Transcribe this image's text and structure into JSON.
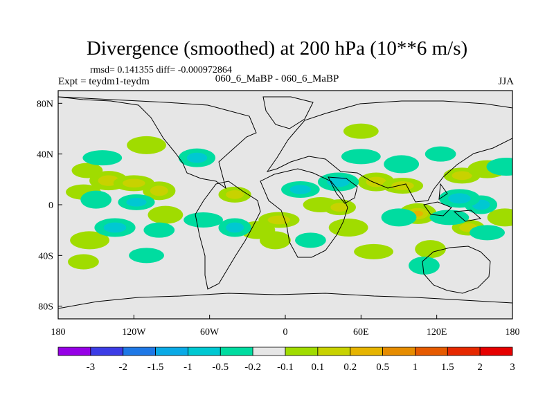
{
  "title": "Divergence (smoothed) at 200 hPa (10**6 m/s)",
  "stats_text": "rmsd= 0.141355 diff= -0.000972864",
  "left_label": "Expt = teydm1-teydm",
  "center_label": "060_6_MaBP - 060_6_MaBP",
  "right_label": "JJA",
  "chart_data": {
    "type": "heatmap",
    "projection": "cylindrical-equidistant",
    "variable": "Divergence (smoothed) at 200 hPa",
    "units": "10**6 m/s",
    "season": "JJA",
    "x_range": [
      -180,
      180
    ],
    "y_range": [
      -90,
      90
    ],
    "x_ticks": [
      {
        "value": -180,
        "label": "180"
      },
      {
        "value": -120,
        "label": "120W"
      },
      {
        "value": -60,
        "label": "60W"
      },
      {
        "value": 0,
        "label": "0"
      },
      {
        "value": 60,
        "label": "60E"
      },
      {
        "value": 120,
        "label": "120E"
      },
      {
        "value": 180,
        "label": "180"
      }
    ],
    "y_ticks": [
      {
        "value": 80,
        "label": "80N"
      },
      {
        "value": 40,
        "label": "40N"
      },
      {
        "value": 0,
        "label": "0"
      },
      {
        "value": -40,
        "label": "40S"
      },
      {
        "value": -80,
        "label": "80S"
      }
    ],
    "colorbar": {
      "colors": [
        "#9600e6",
        "#3c3ce6",
        "#1e78e6",
        "#0aaae6",
        "#00c8d2",
        "#00dca0",
        "#e6e6e6",
        "#a0dc00",
        "#c8d200",
        "#e6b400",
        "#e68c00",
        "#e65a00",
        "#e62800",
        "#e60000"
      ],
      "labels": [
        "-3",
        "-2",
        "-1.5",
        "-1",
        "-0.5",
        "-0.2",
        "-0.1",
        "0.1",
        "0.2",
        "0.5",
        "1",
        "1.5",
        "2",
        "3"
      ]
    },
    "anomaly_regions": [
      {
        "lon": -157,
        "lat": 27,
        "value": 0.2
      },
      {
        "lon": -140,
        "lat": 19,
        "value": 0.4
      },
      {
        "lon": -120,
        "lat": 17,
        "value": 0.3
      },
      {
        "lon": -100,
        "lat": 11,
        "value": 0.3
      },
      {
        "lon": -160,
        "lat": 10,
        "value": 0.2
      },
      {
        "lon": -110,
        "lat": 47,
        "value": 0.2
      },
      {
        "lon": -40,
        "lat": 8,
        "value": 0.3
      },
      {
        "lon": -22,
        "lat": -20,
        "value": 0.2
      },
      {
        "lon": -5,
        "lat": -12,
        "value": 0.3
      },
      {
        "lon": -8,
        "lat": -28,
        "value": 0.2
      },
      {
        "lon": 28,
        "lat": 0,
        "value": 0.2
      },
      {
        "lon": 50,
        "lat": -18,
        "value": 0.2
      },
      {
        "lon": 43,
        "lat": -2,
        "value": 0.3
      },
      {
        "lon": 72,
        "lat": 18,
        "value": 0.3
      },
      {
        "lon": 93,
        "lat": 15,
        "value": 0.3
      },
      {
        "lon": 105,
        "lat": -7,
        "value": 0.6
      },
      {
        "lon": 140,
        "lat": 23,
        "value": 0.3
      },
      {
        "lon": 160,
        "lat": 28,
        "value": 0.2
      },
      {
        "lon": 145,
        "lat": -18,
        "value": 0.3
      },
      {
        "lon": 174,
        "lat": -10,
        "value": 0.2
      },
      {
        "lon": 70,
        "lat": -37,
        "value": 0.2
      },
      {
        "lon": 115,
        "lat": -35,
        "value": 0.2
      },
      {
        "lon": 60,
        "lat": 58,
        "value": 0.2
      },
      {
        "lon": -155,
        "lat": -28,
        "value": 0.2
      },
      {
        "lon": -160,
        "lat": -45,
        "value": 0.2
      },
      {
        "lon": -95,
        "lat": -8,
        "value": 0.2
      },
      {
        "lon": -145,
        "lat": 37,
        "value": -0.2
      },
      {
        "lon": -150,
        "lat": 4,
        "value": -0.2
      },
      {
        "lon": -118,
        "lat": 2,
        "value": -0.3
      },
      {
        "lon": -135,
        "lat": -18,
        "value": -0.3
      },
      {
        "lon": -100,
        "lat": -20,
        "value": -0.2
      },
      {
        "lon": -70,
        "lat": 37,
        "value": -0.3
      },
      {
        "lon": -65,
        "lat": -12,
        "value": -0.2
      },
      {
        "lon": -40,
        "lat": -18,
        "value": -0.3
      },
      {
        "lon": 12,
        "lat": 12,
        "value": -0.4
      },
      {
        "lon": 42,
        "lat": 18,
        "value": -0.3
      },
      {
        "lon": 20,
        "lat": -28,
        "value": -0.2
      },
      {
        "lon": 90,
        "lat": -10,
        "value": -0.2
      },
      {
        "lon": 130,
        "lat": -10,
        "value": -0.2
      },
      {
        "lon": 155,
        "lat": 0,
        "value": -0.3
      },
      {
        "lon": 160,
        "lat": -22,
        "value": -0.2
      },
      {
        "lon": 138,
        "lat": 5,
        "value": -0.3
      },
      {
        "lon": 123,
        "lat": 40,
        "value": -0.2
      },
      {
        "lon": 92,
        "lat": 32,
        "value": -0.2
      },
      {
        "lon": 60,
        "lat": 38,
        "value": -0.2
      },
      {
        "lon": 110,
        "lat": -48,
        "value": -0.2
      },
      {
        "lon": -110,
        "lat": -40,
        "value": -0.2
      },
      {
        "lon": 175,
        "lat": 30,
        "value": -0.2
      }
    ]
  }
}
